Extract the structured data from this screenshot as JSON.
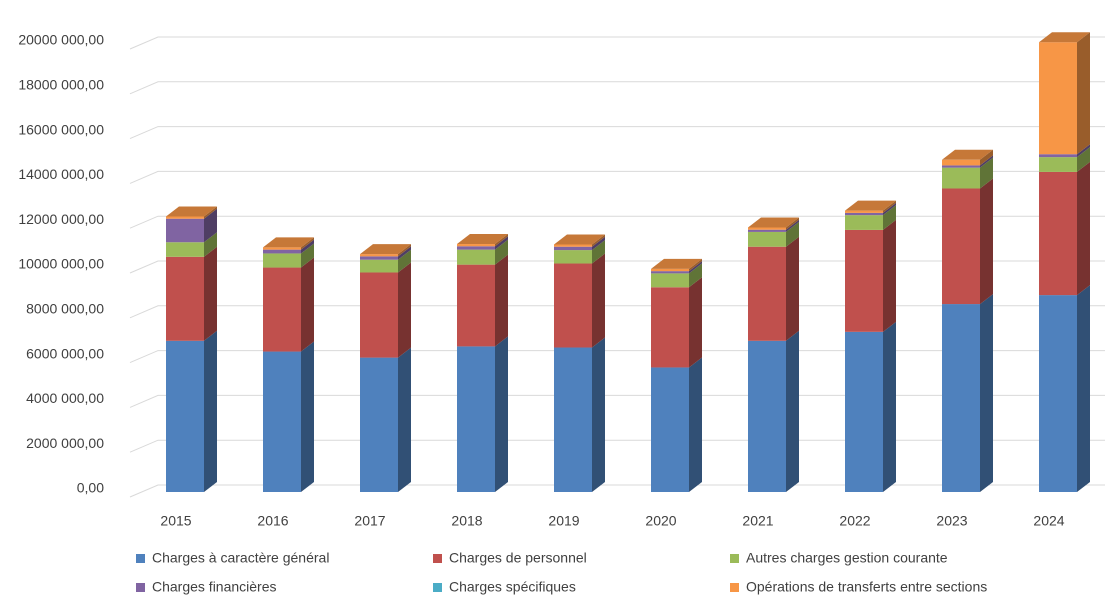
{
  "chart_data": {
    "type": "bar3d_stacked",
    "categories": [
      "2015",
      "2016",
      "2017",
      "2018",
      "2019",
      "2020",
      "2021",
      "2022",
      "2023",
      "2024"
    ],
    "series": [
      {
        "name": "Charges à caractère général",
        "color": "#4f81bd",
        "values": [
          6750000,
          6270000,
          6000000,
          6500000,
          6450000,
          5560000,
          6750000,
          7150000,
          8390000,
          8790000
        ]
      },
      {
        "name": "Charges de personnel",
        "color": "#c0504d",
        "values": [
          3750000,
          3750000,
          3800000,
          3650000,
          3750000,
          3580000,
          4200000,
          4550000,
          5160000,
          5500000
        ]
      },
      {
        "name": "Autres charges gestion courante",
        "color": "#9bbb59",
        "values": [
          650000,
          630000,
          570000,
          670000,
          600000,
          620000,
          660000,
          660000,
          930000,
          660000
        ]
      },
      {
        "name": "Charges financières",
        "color": "#8064a2",
        "values": [
          1050000,
          170000,
          150000,
          150000,
          150000,
          100000,
          100000,
          100000,
          100000,
          130000
        ]
      },
      {
        "name": "Charges spécifiques",
        "color": "#4bacc6",
        "values": [
          0,
          0,
          0,
          0,
          0,
          0,
          0,
          0,
          0,
          0
        ]
      },
      {
        "name": "Opérations de transferts entre sections",
        "color": "#f79646",
        "values": [
          100000,
          100000,
          100000,
          100000,
          100000,
          100000,
          100000,
          100000,
          250000,
          5000000
        ]
      }
    ],
    "ylim": [
      0,
      20000000
    ],
    "yticks": [
      {
        "value": 0,
        "label": "0,00"
      },
      {
        "value": 2000000,
        "label": "2000 000,00"
      },
      {
        "value": 4000000,
        "label": "4000 000,00"
      },
      {
        "value": 6000000,
        "label": "6000 000,00"
      },
      {
        "value": 8000000,
        "label": "8000 000,00"
      },
      {
        "value": 10000000,
        "label": "10000 000,00"
      },
      {
        "value": 12000000,
        "label": "12000 000,00"
      },
      {
        "value": 14000000,
        "label": "14000 000,00"
      },
      {
        "value": 16000000,
        "label": "16000 000,00"
      },
      {
        "value": 18000000,
        "label": "18000 000,00"
      },
      {
        "value": 20000000,
        "label": "20000 000,00"
      }
    ],
    "grid": true
  }
}
